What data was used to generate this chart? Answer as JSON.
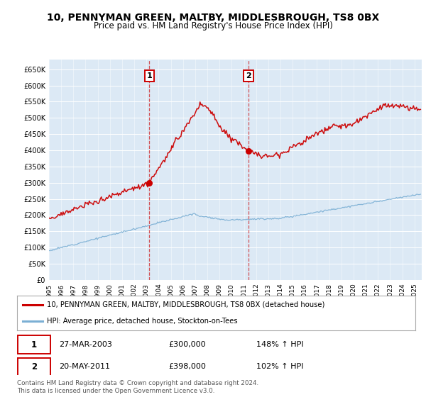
{
  "title": "10, PENNYMAN GREEN, MALTBY, MIDDLESBROUGH, TS8 0BX",
  "subtitle": "Price paid vs. HM Land Registry's House Price Index (HPI)",
  "title_fontsize": 10,
  "subtitle_fontsize": 8.5,
  "plot_bg_color": "#dce9f5",
  "y_ticks": [
    0,
    50000,
    100000,
    150000,
    200000,
    250000,
    300000,
    350000,
    400000,
    450000,
    500000,
    550000,
    600000,
    650000
  ],
  "y_tick_labels": [
    "£0",
    "£50K",
    "£100K",
    "£150K",
    "£200K",
    "£250K",
    "£300K",
    "£350K",
    "£400K",
    "£450K",
    "£500K",
    "£550K",
    "£600K",
    "£650K"
  ],
  "ylim": [
    0,
    680000
  ],
  "legend_label_red": "10, PENNYMAN GREEN, MALTBY, MIDDLESBROUGH, TS8 0BX (detached house)",
  "legend_label_blue": "HPI: Average price, detached house, Stockton-on-Tees",
  "sale1_date": "27-MAR-2003",
  "sale1_price": "£300,000",
  "sale1_hpi": "148% ↑ HPI",
  "sale1_year": 2003.23,
  "sale1_value": 300000,
  "sale2_date": "20-MAY-2011",
  "sale2_price": "£398,000",
  "sale2_hpi": "102% ↑ HPI",
  "sale2_year": 2011.38,
  "sale2_value": 398000,
  "footnote": "Contains HM Land Registry data © Crown copyright and database right 2024.\nThis data is licensed under the Open Government Licence v3.0.",
  "red_color": "#cc0000",
  "blue_color": "#7bafd4",
  "vline_color": "#cc0000",
  "dot_color": "#cc0000",
  "grid_color": "#ffffff",
  "border_color": "#aaaaaa"
}
